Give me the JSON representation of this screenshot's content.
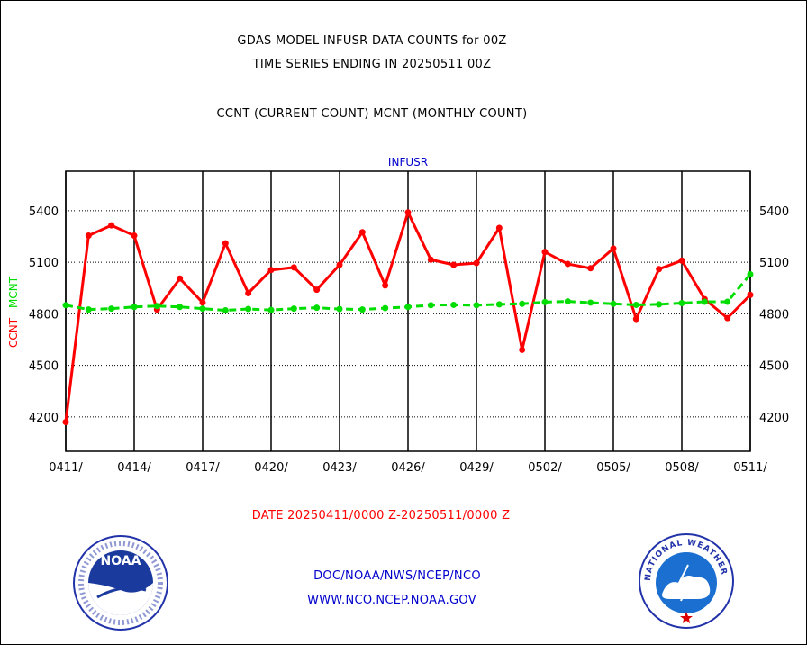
{
  "header": {
    "title_line1": "GDAS MODEL INFUSR DATA COUNTS for 00Z",
    "title_line2": "TIME SERIES ENDING IN 20250511 00Z",
    "subtitle": "CCNT (CURRENT COUNT) MCNT (MONTHLY COUNT)"
  },
  "footer": {
    "date_range": "DATE 20250411/0000 Z-20250511/0000 Z",
    "org": "DOC/NOAA/NWS/NCEP/NCO",
    "url": "WWW.NCO.NCEP.NOAA.GOV",
    "noaa_logo": "NOAA",
    "nws_logo": "NATIONAL WEATHER SERVICE"
  },
  "colors": {
    "ccnt": "#ff0000",
    "mcnt": "#00dd00",
    "title": "#000000",
    "panel_title": "#0000cc",
    "footer_date": "#ff0000",
    "footer_org": "#0000cc"
  },
  "chart_data": {
    "type": "line",
    "title": "INFUSR",
    "ylabel_left": [
      "CCNT",
      "MCNT"
    ],
    "ylim": [
      4000,
      5630
    ],
    "yticks": [
      4200,
      4500,
      4800,
      5100,
      5400
    ],
    "grid": true,
    "x_tick_labels": [
      "0411/",
      "0414/",
      "0417/",
      "0420/",
      "0423/",
      "0426/",
      "0429/",
      "0502/",
      "0505/",
      "0508/",
      "0511/"
    ],
    "x": [
      "0411",
      "0412",
      "0413",
      "0414",
      "0415",
      "0416",
      "0417",
      "0418",
      "0419",
      "0420",
      "0421",
      "0422",
      "0423",
      "0424",
      "0425",
      "0426",
      "0427",
      "0428",
      "0429",
      "0430",
      "0501",
      "0502",
      "0503",
      "0504",
      "0505",
      "0506",
      "0507",
      "0508",
      "0509",
      "0510",
      "0511"
    ],
    "series": [
      {
        "name": "CCNT",
        "values": [
          4170,
          5255,
          5315,
          5255,
          4825,
          5005,
          4865,
          5210,
          4920,
          5055,
          5070,
          4940,
          5085,
          5275,
          4965,
          5390,
          5115,
          5085,
          5095,
          5300,
          4590,
          5160,
          5090,
          5065,
          5180,
          4770,
          5060,
          5110,
          4885,
          4775,
          4910
        ]
      },
      {
        "name": "MCNT",
        "values": [
          4850,
          4825,
          4830,
          4840,
          4845,
          4840,
          4830,
          4820,
          4828,
          4822,
          4830,
          4835,
          4828,
          4825,
          4833,
          4840,
          4850,
          4852,
          4850,
          4855,
          4858,
          4868,
          4872,
          4865,
          4858,
          4852,
          4855,
          4862,
          4870,
          4870,
          5030
        ]
      }
    ]
  }
}
